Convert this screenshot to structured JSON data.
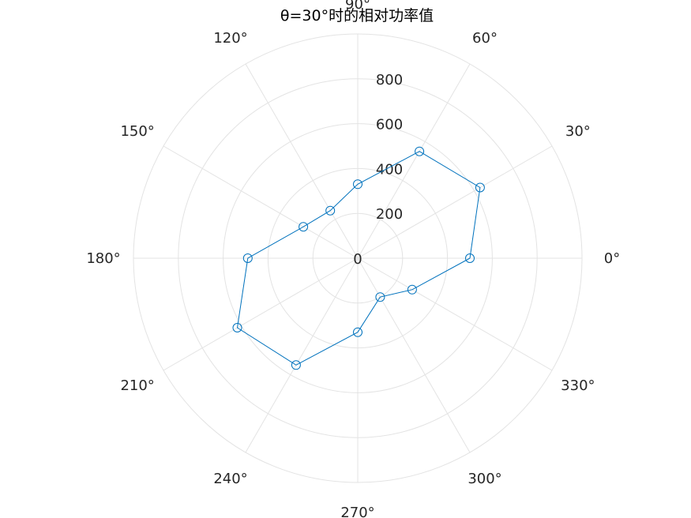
{
  "chart_data": {
    "type": "polar-line",
    "title": "θ=30°时的相对功率值",
    "theta_unit": "degrees",
    "theta_tick_labels": [
      "0°",
      "30°",
      "60°",
      "90°",
      "120°",
      "150°",
      "180°",
      "210°",
      "240°",
      "270°",
      "300°",
      "330°"
    ],
    "r_ticks": [
      0,
      200,
      400,
      600,
      800
    ],
    "r_tick_labels": [
      "0",
      "200",
      "400",
      "600",
      "800"
    ],
    "rlim": [
      0,
      1000
    ],
    "grid": true,
    "series": [
      {
        "color": "#0072BD",
        "marker": "circle",
        "theta": [
          0,
          30,
          60,
          90,
          120,
          150,
          180,
          210,
          240,
          270,
          300,
          330
        ],
        "r": [
          500,
          630,
          550,
          330,
          245,
          280,
          490,
          620,
          550,
          330,
          200,
          280
        ]
      }
    ]
  }
}
